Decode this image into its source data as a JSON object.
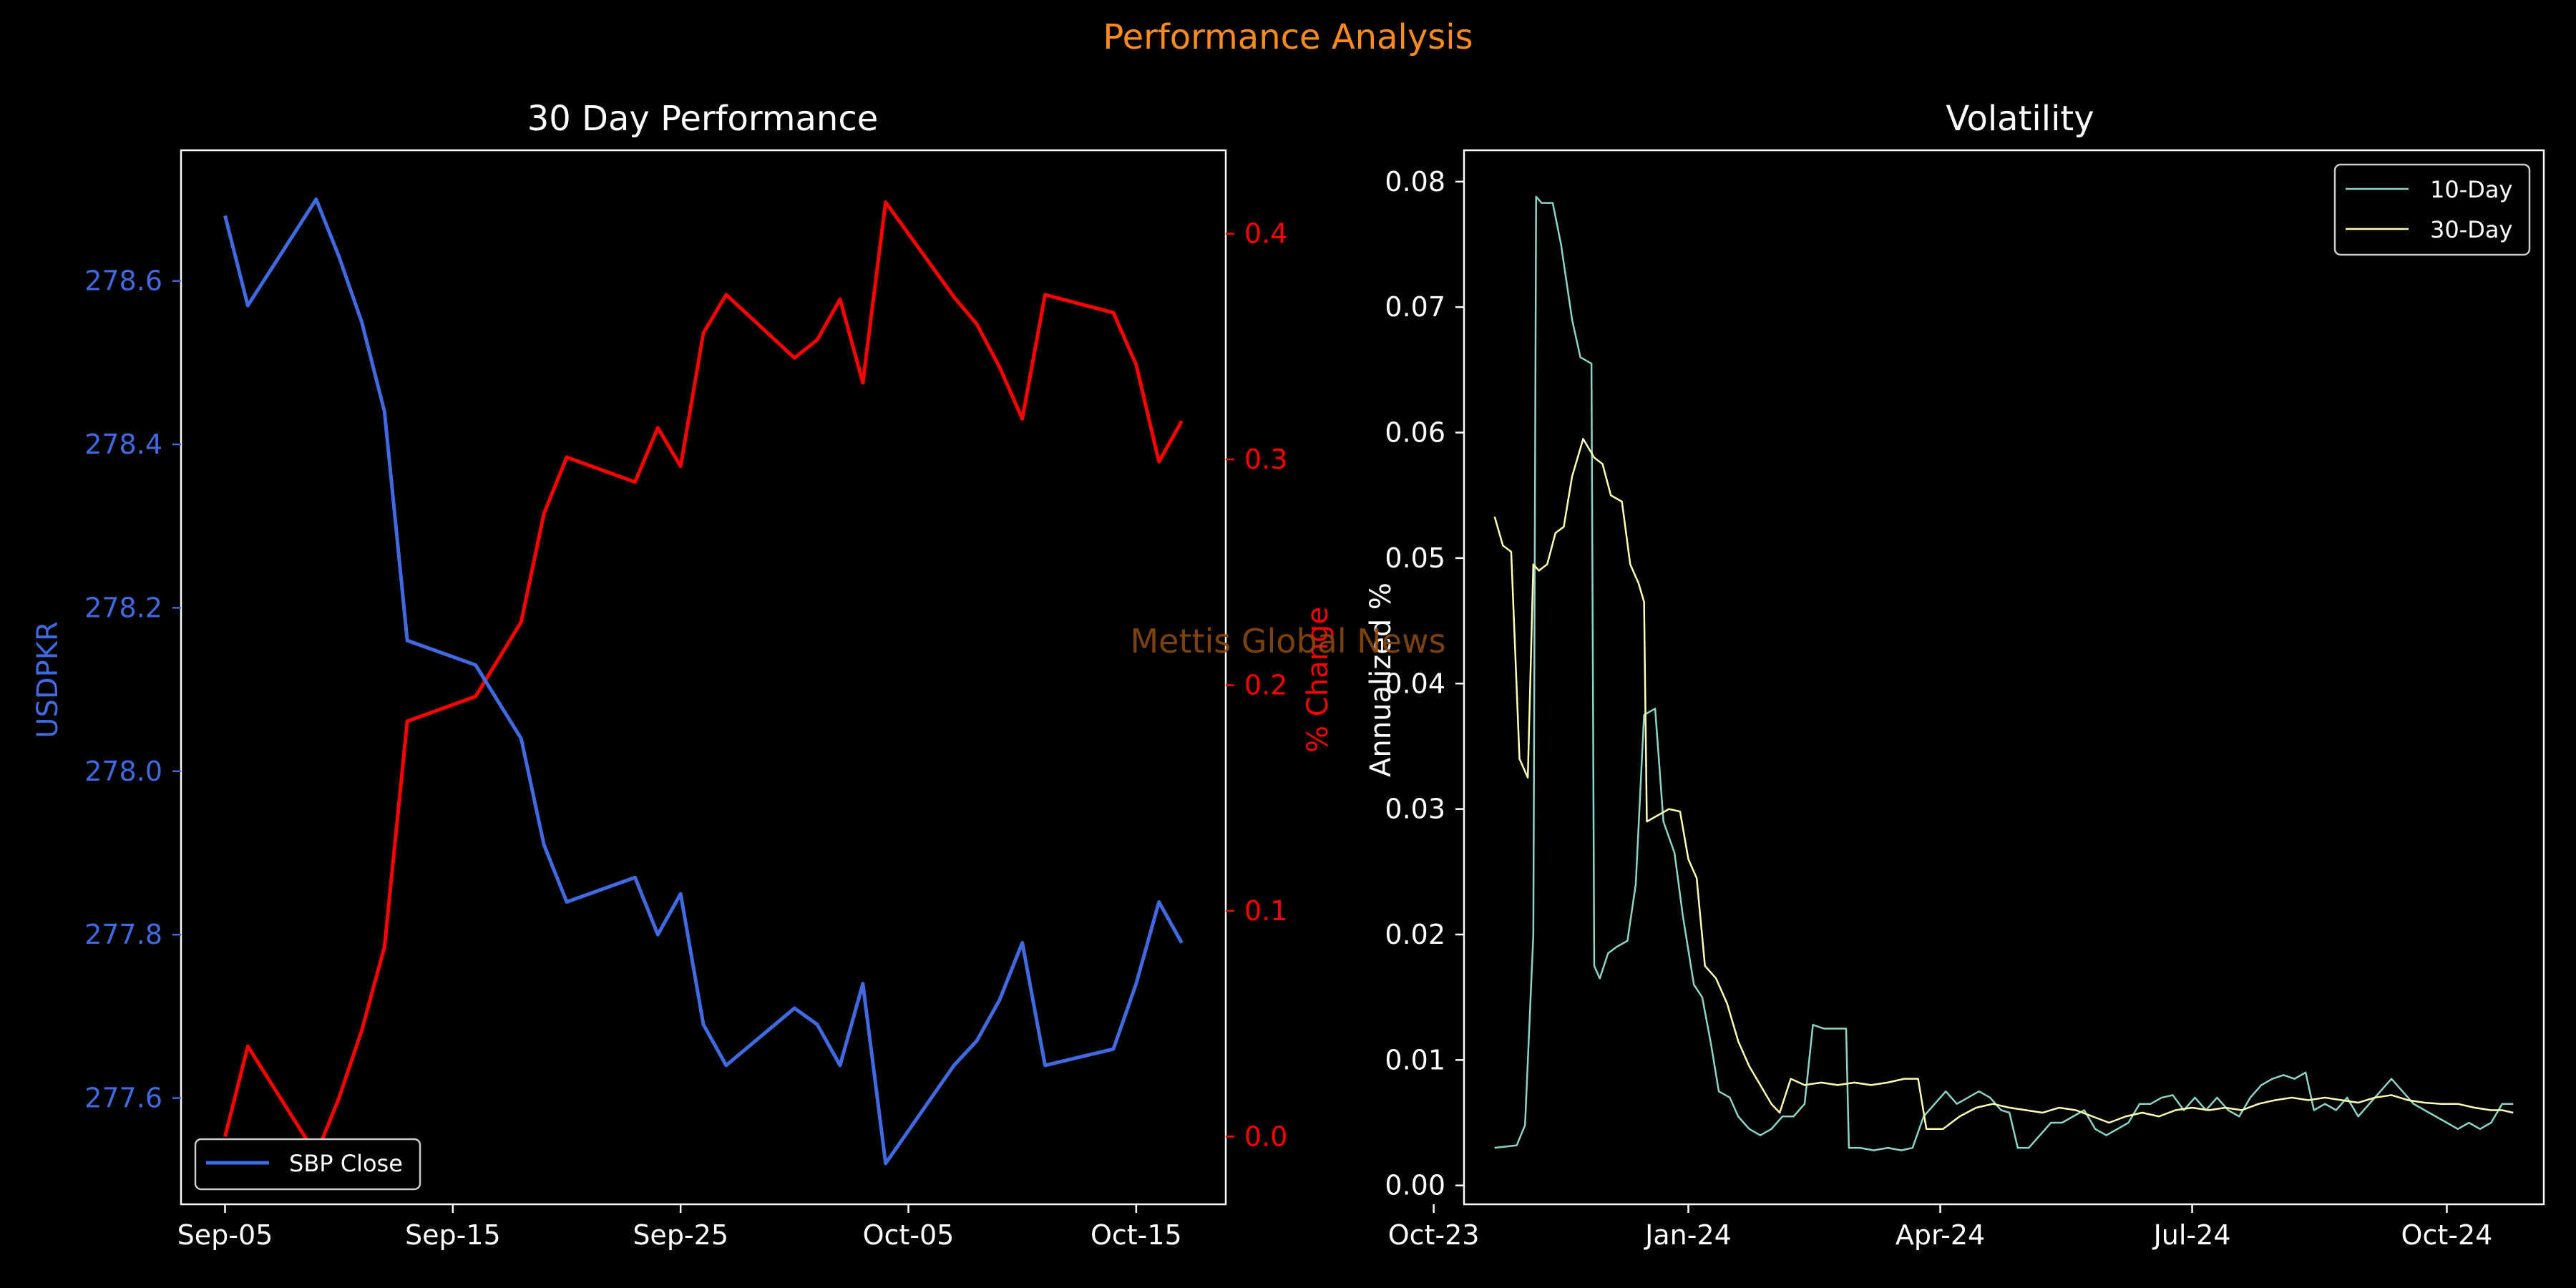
{
  "figure": {
    "suptitle": "Performance Analysis",
    "watermark": "Mettis Global News",
    "colors": {
      "background": "#000000",
      "suptitle": "#ff8c1a",
      "watermark": "#8a4a10",
      "usdpkr": "#4169e1",
      "pct_change": "#ff0000",
      "vol10": "#8dd3c7",
      "vol30": "#ffffb3",
      "axis": "#ffffff"
    }
  },
  "chart_data": [
    {
      "type": "line",
      "title": "30 Day Performance",
      "x": [
        "2024-09-05",
        "2024-09-06",
        "2024-09-09",
        "2024-09-10",
        "2024-09-11",
        "2024-09-12",
        "2024-09-13",
        "2024-09-16",
        "2024-09-18",
        "2024-09-19",
        "2024-09-20",
        "2024-09-23",
        "2024-09-24",
        "2024-09-25",
        "2024-09-26",
        "2024-09-27",
        "2024-09-30",
        "2024-10-01",
        "2024-10-02",
        "2024-10-03",
        "2024-10-04",
        "2024-10-07",
        "2024-10-08",
        "2024-10-09",
        "2024-10-10",
        "2024-10-11",
        "2024-10-14",
        "2024-10-15",
        "2024-10-16",
        "2024-10-17"
      ],
      "xticks": [
        "Sep-05",
        "Sep-15",
        "Sep-25",
        "Oct-05",
        "Oct-15"
      ],
      "xtick_dates": [
        "2024-09-05",
        "2024-09-15",
        "2024-09-25",
        "2024-10-05",
        "2024-10-15"
      ],
      "y_left": {
        "label": "USDPKR",
        "ticks": [
          "277.6",
          "277.8",
          "278.0",
          "278.2",
          "278.4",
          "278.6"
        ],
        "tick_values": [
          277.6,
          277.8,
          278.0,
          278.2,
          278.4,
          278.6
        ],
        "ylim": [
          277.47,
          278.76
        ],
        "series": [
          {
            "name": "SBP Close",
            "values": [
              278.68,
              278.57,
              278.7,
              278.63,
              278.55,
              278.44,
              278.16,
              278.13,
              278.04,
              277.91,
              277.84,
              277.87,
              277.8,
              277.85,
              277.69,
              277.64,
              277.71,
              277.69,
              277.64,
              277.74,
              277.52,
              277.64,
              277.67,
              277.72,
              277.79,
              277.64,
              277.66,
              277.74,
              277.84,
              277.79
            ]
          }
        ]
      },
      "y_right": {
        "label": "% Change",
        "ticks": [
          "0.0",
          "0.1",
          "0.2",
          "0.3",
          "0.4"
        ],
        "tick_values": [
          0.0,
          0.1,
          0.2,
          0.3,
          0.4
        ],
        "ylim": [
          -0.03,
          0.437
        ],
        "series": [
          {
            "name": "% Change",
            "values": [
              0.0,
              0.04,
              -0.008,
              0.017,
              0.047,
              0.084,
              0.184,
              0.195,
              0.228,
              0.276,
              0.301,
              0.29,
              0.314,
              0.297,
              0.356,
              0.373,
              0.345,
              0.353,
              0.371,
              0.334,
              0.414,
              0.372,
              0.36,
              0.341,
              0.318,
              0.373,
              0.365,
              0.342,
              0.299,
              0.317
            ]
          }
        ]
      },
      "legend": {
        "location": "lower-left",
        "entries": [
          "SBP Close"
        ]
      }
    },
    {
      "type": "line",
      "title": "Volatility",
      "ylabel": "Annualized %",
      "x_start": "2023-10-23",
      "x_end": "2024-10-25",
      "xticks": [
        "Oct-23",
        "Jan-24",
        "Apr-24",
        "Jul-24",
        "Oct-24"
      ],
      "xtick_dates": [
        "2023-10-01",
        "2024-01-01",
        "2024-04-01",
        "2024-07-01",
        "2024-10-01"
      ],
      "yticks": [
        "0.00",
        "0.01",
        "0.02",
        "0.03",
        "0.04",
        "0.05",
        "0.06",
        "0.07",
        "0.08"
      ],
      "ytick_values": [
        0.0,
        0.01,
        0.02,
        0.03,
        0.04,
        0.05,
        0.06,
        0.07,
        0.08
      ],
      "ylim": [
        -0.0015,
        0.0825
      ],
      "legend": {
        "location": "top-right",
        "entries": [
          "10-Day",
          "30-Day"
        ]
      },
      "series": [
        {
          "name": "10-Day",
          "points": [
            [
              "2023-10-23",
              0.003
            ],
            [
              "2023-10-31",
              0.0032
            ],
            [
              "2023-11-03",
              0.0048
            ],
            [
              "2023-11-06",
              0.02
            ],
            [
              "2023-11-07",
              0.0788
            ],
            [
              "2023-11-09",
              0.0783
            ],
            [
              "2023-11-13",
              0.0783
            ],
            [
              "2023-11-16",
              0.075
            ],
            [
              "2023-11-20",
              0.069
            ],
            [
              "2023-11-23",
              0.066
            ],
            [
              "2023-11-27",
              0.0655
            ],
            [
              "2023-11-28",
              0.0175
            ],
            [
              "2023-11-30",
              0.0165
            ],
            [
              "2023-12-03",
              0.0185
            ],
            [
              "2023-12-06",
              0.019
            ],
            [
              "2023-12-10",
              0.0195
            ],
            [
              "2023-12-13",
              0.024
            ],
            [
              "2023-12-16",
              0.0375
            ],
            [
              "2023-12-20",
              0.038
            ],
            [
              "2023-12-23",
              0.029
            ],
            [
              "2023-12-27",
              0.0265
            ],
            [
              "2023-12-30",
              0.0215
            ],
            [
              "2024-01-03",
              0.016
            ],
            [
              "2024-01-06",
              0.015
            ],
            [
              "2024-01-09",
              0.0115
            ],
            [
              "2024-01-12",
              0.0075
            ],
            [
              "2024-01-16",
              0.007
            ],
            [
              "2024-01-19",
              0.0055
            ],
            [
              "2024-01-23",
              0.0045
            ],
            [
              "2024-01-27",
              0.004
            ],
            [
              "2024-01-31",
              0.0045
            ],
            [
              "2024-02-04",
              0.0055
            ],
            [
              "2024-02-08",
              0.0055
            ],
            [
              "2024-02-12",
              0.0065
            ],
            [
              "2024-02-15",
              0.0128
            ],
            [
              "2024-02-19",
              0.0125
            ],
            [
              "2024-02-23",
              0.0125
            ],
            [
              "2024-02-27",
              0.0125
            ],
            [
              "2024-02-28",
              0.003
            ],
            [
              "2024-03-03",
              0.003
            ],
            [
              "2024-03-08",
              0.0028
            ],
            [
              "2024-03-13",
              0.003
            ],
            [
              "2024-03-18",
              0.0028
            ],
            [
              "2024-03-22",
              0.003
            ],
            [
              "2024-03-26",
              0.0055
            ],
            [
              "2024-03-30",
              0.0065
            ],
            [
              "2024-04-03",
              0.0075
            ],
            [
              "2024-04-07",
              0.0065
            ],
            [
              "2024-04-11",
              0.007
            ],
            [
              "2024-04-15",
              0.0075
            ],
            [
              "2024-04-19",
              0.007
            ],
            [
              "2024-04-23",
              0.006
            ],
            [
              "2024-04-26",
              0.0058
            ],
            [
              "2024-04-29",
              0.003
            ],
            [
              "2024-05-03",
              0.003
            ],
            [
              "2024-05-07",
              0.004
            ],
            [
              "2024-05-11",
              0.005
            ],
            [
              "2024-05-15",
              0.005
            ],
            [
              "2024-05-19",
              0.0055
            ],
            [
              "2024-05-23",
              0.006
            ],
            [
              "2024-05-27",
              0.0045
            ],
            [
              "2024-05-31",
              0.004
            ],
            [
              "2024-06-04",
              0.0045
            ],
            [
              "2024-06-08",
              0.005
            ],
            [
              "2024-06-12",
              0.0065
            ],
            [
              "2024-06-16",
              0.0065
            ],
            [
              "2024-06-20",
              0.007
            ],
            [
              "2024-06-24",
              0.0072
            ],
            [
              "2024-06-28",
              0.006
            ],
            [
              "2024-07-02",
              0.007
            ],
            [
              "2024-07-06",
              0.006
            ],
            [
              "2024-07-10",
              0.007
            ],
            [
              "2024-07-14",
              0.006
            ],
            [
              "2024-07-18",
              0.0055
            ],
            [
              "2024-07-22",
              0.007
            ],
            [
              "2024-07-26",
              0.008
            ],
            [
              "2024-07-30",
              0.0085
            ],
            [
              "2024-08-03",
              0.0088
            ],
            [
              "2024-08-07",
              0.0085
            ],
            [
              "2024-08-11",
              0.009
            ],
            [
              "2024-08-14",
              0.006
            ],
            [
              "2024-08-18",
              0.0065
            ],
            [
              "2024-08-22",
              0.006
            ],
            [
              "2024-08-26",
              0.007
            ],
            [
              "2024-08-30",
              0.0055
            ],
            [
              "2024-09-03",
              0.0065
            ],
            [
              "2024-09-07",
              0.0075
            ],
            [
              "2024-09-11",
              0.0085
            ],
            [
              "2024-09-15",
              0.0075
            ],
            [
              "2024-09-19",
              0.0065
            ],
            [
              "2024-09-23",
              0.006
            ],
            [
              "2024-09-27",
              0.0055
            ],
            [
              "2024-10-01",
              0.005
            ],
            [
              "2024-10-05",
              0.0045
            ],
            [
              "2024-10-09",
              0.005
            ],
            [
              "2024-10-13",
              0.0045
            ],
            [
              "2024-10-17",
              0.005
            ],
            [
              "2024-10-21",
              0.0065
            ],
            [
              "2024-10-25",
              0.0065
            ]
          ]
        },
        {
          "name": "30-Day",
          "points": [
            [
              "2023-10-23",
              0.0533
            ],
            [
              "2023-10-26",
              0.051
            ],
            [
              "2023-10-29",
              0.0505
            ],
            [
              "2023-11-01",
              0.034
            ],
            [
              "2023-11-04",
              0.0325
            ],
            [
              "2023-11-06",
              0.0495
            ],
            [
              "2023-11-08",
              0.049
            ],
            [
              "2023-11-11",
              0.0495
            ],
            [
              "2023-11-14",
              0.052
            ],
            [
              "2023-11-17",
              0.0525
            ],
            [
              "2023-11-20",
              0.0565
            ],
            [
              "2023-11-24",
              0.0595
            ],
            [
              "2023-11-28",
              0.058
            ],
            [
              "2023-12-01",
              0.0575
            ],
            [
              "2023-12-04",
              0.055
            ],
            [
              "2023-12-08",
              0.0545
            ],
            [
              "2023-12-11",
              0.0495
            ],
            [
              "2023-12-14",
              0.048
            ],
            [
              "2023-12-16",
              0.0465
            ],
            [
              "2023-12-17",
              0.029
            ],
            [
              "2023-12-21",
              0.0295
            ],
            [
              "2023-12-25",
              0.03
            ],
            [
              "2023-12-29",
              0.0298
            ],
            [
              "2024-01-01",
              0.026
            ],
            [
              "2024-01-04",
              0.0245
            ],
            [
              "2024-01-07",
              0.0175
            ],
            [
              "2024-01-11",
              0.0165
            ],
            [
              "2024-01-15",
              0.0145
            ],
            [
              "2024-01-19",
              0.0115
            ],
            [
              "2024-01-23",
              0.0095
            ],
            [
              "2024-01-27",
              0.008
            ],
            [
              "2024-01-31",
              0.0065
            ],
            [
              "2024-02-03",
              0.0058
            ],
            [
              "2024-02-07",
              0.0085
            ],
            [
              "2024-02-12",
              0.008
            ],
            [
              "2024-02-18",
              0.0082
            ],
            [
              "2024-02-24",
              0.008
            ],
            [
              "2024-03-01",
              0.0082
            ],
            [
              "2024-03-07",
              0.008
            ],
            [
              "2024-03-13",
              0.0082
            ],
            [
              "2024-03-19",
              0.0085
            ],
            [
              "2024-03-24",
              0.0085
            ],
            [
              "2024-03-27",
              0.0045
            ],
            [
              "2024-04-02",
              0.0045
            ],
            [
              "2024-04-08",
              0.0055
            ],
            [
              "2024-04-14",
              0.0062
            ],
            [
              "2024-04-20",
              0.0065
            ],
            [
              "2024-04-26",
              0.0062
            ],
            [
              "2024-05-02",
              0.006
            ],
            [
              "2024-05-08",
              0.0058
            ],
            [
              "2024-05-14",
              0.0062
            ],
            [
              "2024-05-20",
              0.006
            ],
            [
              "2024-05-26",
              0.0055
            ],
            [
              "2024-06-01",
              0.005
            ],
            [
              "2024-06-07",
              0.0055
            ],
            [
              "2024-06-13",
              0.0058
            ],
            [
              "2024-06-19",
              0.0055
            ],
            [
              "2024-06-25",
              0.006
            ],
            [
              "2024-07-01",
              0.0062
            ],
            [
              "2024-07-07",
              0.006
            ],
            [
              "2024-07-13",
              0.0062
            ],
            [
              "2024-07-19",
              0.006
            ],
            [
              "2024-07-25",
              0.0065
            ],
            [
              "2024-07-31",
              0.0068
            ],
            [
              "2024-08-06",
              0.007
            ],
            [
              "2024-08-12",
              0.0068
            ],
            [
              "2024-08-18",
              0.007
            ],
            [
              "2024-08-24",
              0.0068
            ],
            [
              "2024-08-30",
              0.0066
            ],
            [
              "2024-09-05",
              0.007
            ],
            [
              "2024-09-11",
              0.0072
            ],
            [
              "2024-09-17",
              0.0068
            ],
            [
              "2024-09-23",
              0.0066
            ],
            [
              "2024-09-29",
              0.0065
            ],
            [
              "2024-10-05",
              0.0065
            ],
            [
              "2024-10-11",
              0.0062
            ],
            [
              "2024-10-17",
              0.006
            ],
            [
              "2024-10-21",
              0.006
            ],
            [
              "2024-10-25",
              0.0058
            ]
          ]
        }
      ]
    }
  ]
}
